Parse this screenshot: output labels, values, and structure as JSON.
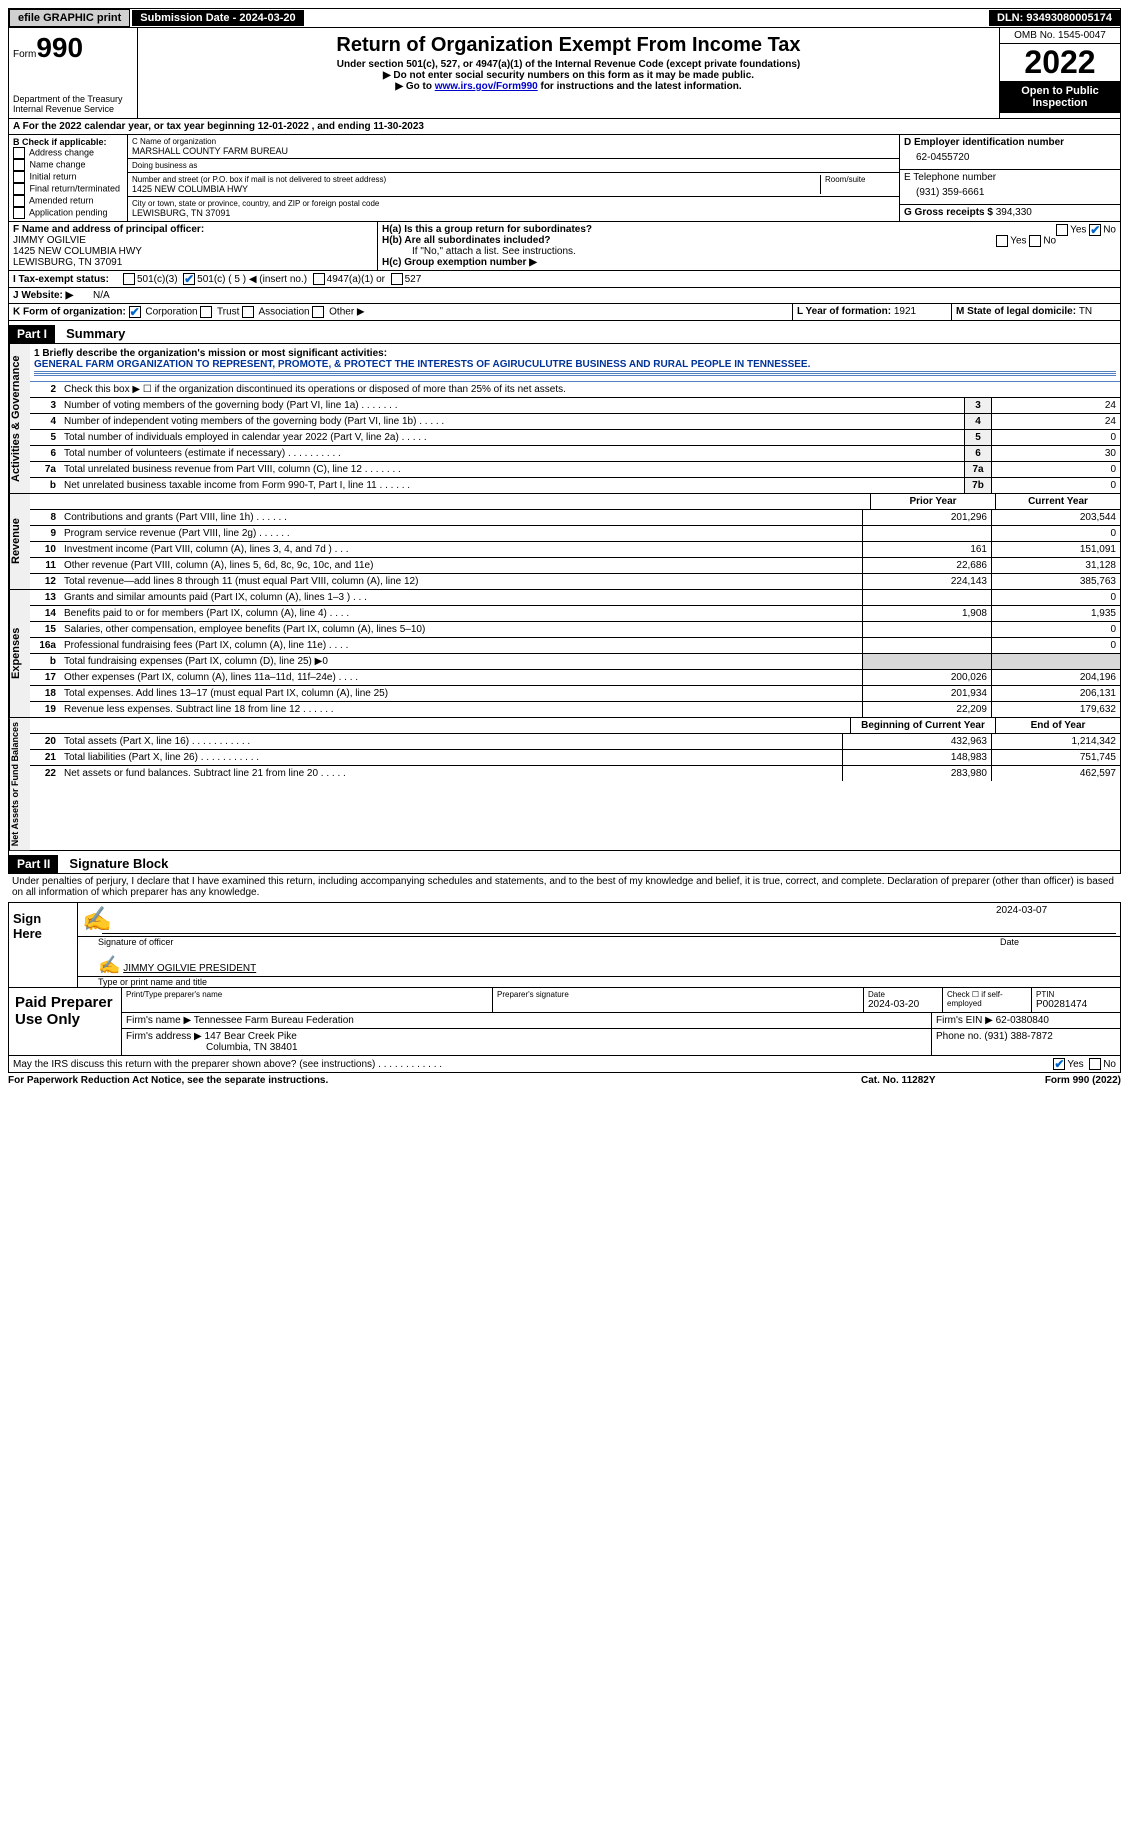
{
  "topbar": {
    "efile": "efile GRAPHIC print",
    "subdate_label": "Submission Date - ",
    "subdate": "2024-03-20",
    "dln_label": "DLN: ",
    "dln": "93493080005174"
  },
  "header": {
    "form_label": "Form",
    "form_num": "990",
    "dept": "Department of the Treasury\nInternal Revenue Service",
    "title": "Return of Organization Exempt From Income Tax",
    "subtitle": "Under section 501(c), 527, or 4947(a)(1) of the Internal Revenue Code (except private foundations)",
    "note1": "▶ Do not enter social security numbers on this form as it may be made public.",
    "note2_prefix": "▶ Go to ",
    "note2_link": "www.irs.gov/Form990",
    "note2_suffix": " for instructions and the latest information.",
    "omb": "OMB No. 1545-0047",
    "year": "2022",
    "inspect": "Open to Public Inspection"
  },
  "sectionA": {
    "text_prefix": "A For the 2022 calendar year, or tax year beginning ",
    "begin": "12-01-2022",
    "mid": " , and ending ",
    "end": "11-30-2023"
  },
  "colB": {
    "header": "B Check if applicable:",
    "items": [
      "Address change",
      "Name change",
      "Initial return",
      "Final return/terminated",
      "Amended return",
      "Application pending"
    ]
  },
  "colC": {
    "name_label": "C Name of organization",
    "name": "MARSHALL COUNTY FARM BUREAU",
    "dba_label": "Doing business as",
    "dba": "",
    "street_label": "Number and street (or P.O. box if mail is not delivered to street address)",
    "room_label": "Room/suite",
    "street": "1425 NEW COLUMBIA HWY",
    "city_label": "City or town, state or province, country, and ZIP or foreign postal code",
    "city": "LEWISBURG, TN  37091"
  },
  "colDE": {
    "d_label": "D Employer identification number",
    "d_val": "62-0455720",
    "e_label": "E Telephone number",
    "e_val": "(931) 359-6661",
    "g_label": "G Gross receipts $ ",
    "g_val": "394,330"
  },
  "colF": {
    "label": "F Name and address of principal officer:",
    "name": "JIMMY OGILVIE",
    "street": "1425 NEW COLUMBIA HWY",
    "city": "LEWISBURG, TN  37091"
  },
  "colH": {
    "ha_label": "H(a)  Is this a group return for subordinates?",
    "hb_label": "H(b)  Are all subordinates included?",
    "hb_note": "If \"No,\" attach a list. See instructions.",
    "hc_label": "H(c)  Group exemption number ▶"
  },
  "rowI": {
    "label": "I  Tax-exempt status:",
    "opts": [
      "501(c)(3)",
      "501(c) ( 5 ) ◀ (insert no.)",
      "4947(a)(1) or",
      "527"
    ]
  },
  "rowJ": {
    "label": "J  Website: ▶",
    "val": "N/A"
  },
  "rowK": {
    "label": "K Form of organization:",
    "opts": [
      "Corporation",
      "Trust",
      "Association",
      "Other ▶"
    ],
    "l_label": "L Year of formation: ",
    "l_val": "1921",
    "m_label": "M State of legal domicile: ",
    "m_val": "TN"
  },
  "part1": {
    "header": "Part I",
    "title": "Summary",
    "side1": "Activities & Governance",
    "side2": "Revenue",
    "side3": "Expenses",
    "side4": "Net Assets or Fund Balances",
    "line1_label": "1  Briefly describe the organization's mission or most significant activities:",
    "line1_val": "GENERAL FARM ORGANIZATION TO REPRESENT, PROMOTE, & PROTECT THE INTERESTS OF AGIRUCULUTRE BUSINESS AND RURAL PEOPLE IN TENNESSEE.",
    "line2": "Check this box ▶ ☐ if the organization discontinued its operations or disposed of more than 25% of its net assets.",
    "lines_simple": [
      {
        "num": "3",
        "desc": "Number of voting members of the governing body (Part VI, line 1a)   .     .     .     .     .     .     .",
        "box": "3",
        "val": "24"
      },
      {
        "num": "4",
        "desc": "Number of independent voting members of the governing body (Part VI, line 1b)  .     .     .     .     .",
        "box": "4",
        "val": "24"
      },
      {
        "num": "5",
        "desc": "Total number of individuals employed in calendar year 2022 (Part V, line 2a)   .     .     .     .     .",
        "box": "5",
        "val": "0"
      },
      {
        "num": "6",
        "desc": "Total number of volunteers (estimate if necessary)    .     .     .     .     .     .     .     .     .     .",
        "box": "6",
        "val": "30"
      },
      {
        "num": "7a",
        "desc": "Total unrelated business revenue from Part VIII, column (C), line 12   .     .     .     .     .     .     .",
        "box": "7a",
        "val": "0"
      },
      {
        "num": "b",
        "desc": "Net unrelated business taxable income from Form 990-T, Part I, line 11   .     .     .     .     .     .",
        "box": "7b",
        "val": "0"
      }
    ],
    "prior_year": "Prior Year",
    "current_year": "Current Year",
    "revenue_lines": [
      {
        "num": "8",
        "desc": "Contributions and grants (Part VIII, line 1h)    .     .     .     .     .     .",
        "py": "201,296",
        "cy": "203,544"
      },
      {
        "num": "9",
        "desc": "Program service revenue (Part VIII, line 2g)   .     .     .     .     .     .",
        "py": "",
        "cy": "0"
      },
      {
        "num": "10",
        "desc": "Investment income (Part VIII, column (A), lines 3, 4, and 7d )    .     .     .",
        "py": "161",
        "cy": "151,091"
      },
      {
        "num": "11",
        "desc": "Other revenue (Part VIII, column (A), lines 5, 6d, 8c, 9c, 10c, and 11e)",
        "py": "22,686",
        "cy": "31,128"
      },
      {
        "num": "12",
        "desc": "Total revenue—add lines 8 through 11 (must equal Part VIII, column (A), line 12)",
        "py": "224,143",
        "cy": "385,763"
      }
    ],
    "expense_lines": [
      {
        "num": "13",
        "desc": "Grants and similar amounts paid (Part IX, column (A), lines 1–3 )  .     .     .",
        "py": "",
        "cy": "0"
      },
      {
        "num": "14",
        "desc": "Benefits paid to or for members (Part IX, column (A), line 4)  .     .     .     .",
        "py": "1,908",
        "cy": "1,935"
      },
      {
        "num": "15",
        "desc": "Salaries, other compensation, employee benefits (Part IX, column (A), lines 5–10)",
        "py": "",
        "cy": "0"
      },
      {
        "num": "16a",
        "desc": "Professional fundraising fees (Part IX, column (A), line 11e)   .     .     .     .",
        "py": "",
        "cy": "0"
      },
      {
        "num": "b",
        "desc": "Total fundraising expenses (Part IX, column (D), line 25) ▶0",
        "py": "SHADED",
        "cy": "SHADED"
      },
      {
        "num": "17",
        "desc": "Other expenses (Part IX, column (A), lines 11a–11d, 11f–24e)   .     .     .     .",
        "py": "200,026",
        "cy": "204,196"
      },
      {
        "num": "18",
        "desc": "Total expenses. Add lines 13–17 (must equal Part IX, column (A), line 25)",
        "py": "201,934",
        "cy": "206,131"
      },
      {
        "num": "19",
        "desc": "Revenue less expenses. Subtract line 18 from line 12   .     .     .     .     .     .",
        "py": "22,209",
        "cy": "179,632"
      }
    ],
    "bcy": "Beginning of Current Year",
    "eoy": "End of Year",
    "net_lines": [
      {
        "num": "20",
        "desc": "Total assets (Part X, line 16)   .     .     .     .     .     .     .     .     .     .     .",
        "py": "432,963",
        "cy": "1,214,342"
      },
      {
        "num": "21",
        "desc": "Total liabilities (Part X, line 26)  .     .     .     .     .     .     .     .     .     .     .",
        "py": "148,983",
        "cy": "751,745"
      },
      {
        "num": "22",
        "desc": "Net assets or fund balances. Subtract line 21 from line 20   .     .     .     .     .",
        "py": "283,980",
        "cy": "462,597"
      }
    ]
  },
  "part2": {
    "header": "Part II",
    "title": "Signature Block",
    "penalty": "Under penalties of perjury, I declare that I have examined this return, including accompanying schedules and statements, and to the best of my knowledge and belief, it is true, correct, and complete. Declaration of preparer (other than officer) is based on all information of which preparer has any knowledge.",
    "sign_here": "Sign Here",
    "sig_officer": "Signature of officer",
    "sig_date": "2024-03-07",
    "date_label": "Date",
    "sig_name": "JIMMY OGILVIE  PRESIDENT",
    "type_name": "Type or print name and title",
    "paid_prep": "Paid Preparer Use Only",
    "prep_name_label": "Print/Type preparer's name",
    "prep_sig_label": "Preparer's signature",
    "prep_date_label": "Date",
    "prep_date": "2024-03-20",
    "prep_check": "Check ☐ if self-employed",
    "ptin_label": "PTIN",
    "ptin": "P00281474",
    "firm_name_label": "Firm's name      ▶ ",
    "firm_name": "Tennessee Farm Bureau Federation",
    "firm_ein_label": "Firm's EIN ▶ ",
    "firm_ein": "62-0380840",
    "firm_addr_label": "Firm's address  ▶ ",
    "firm_addr1": "147 Bear Creek Pike",
    "firm_addr2": "Columbia, TN  38401",
    "firm_phone_label": "Phone no. ",
    "firm_phone": "(931) 388-7872",
    "discuss": "May the IRS discuss this return with the preparer shown above? (see instructions)   .     .     .     .     .     .     .     .     .     .     .     .",
    "pra": "For Paperwork Reduction Act Notice, see the separate instructions.",
    "cat": "Cat. No. 11282Y",
    "form_foot": "Form 990 (2022)"
  }
}
